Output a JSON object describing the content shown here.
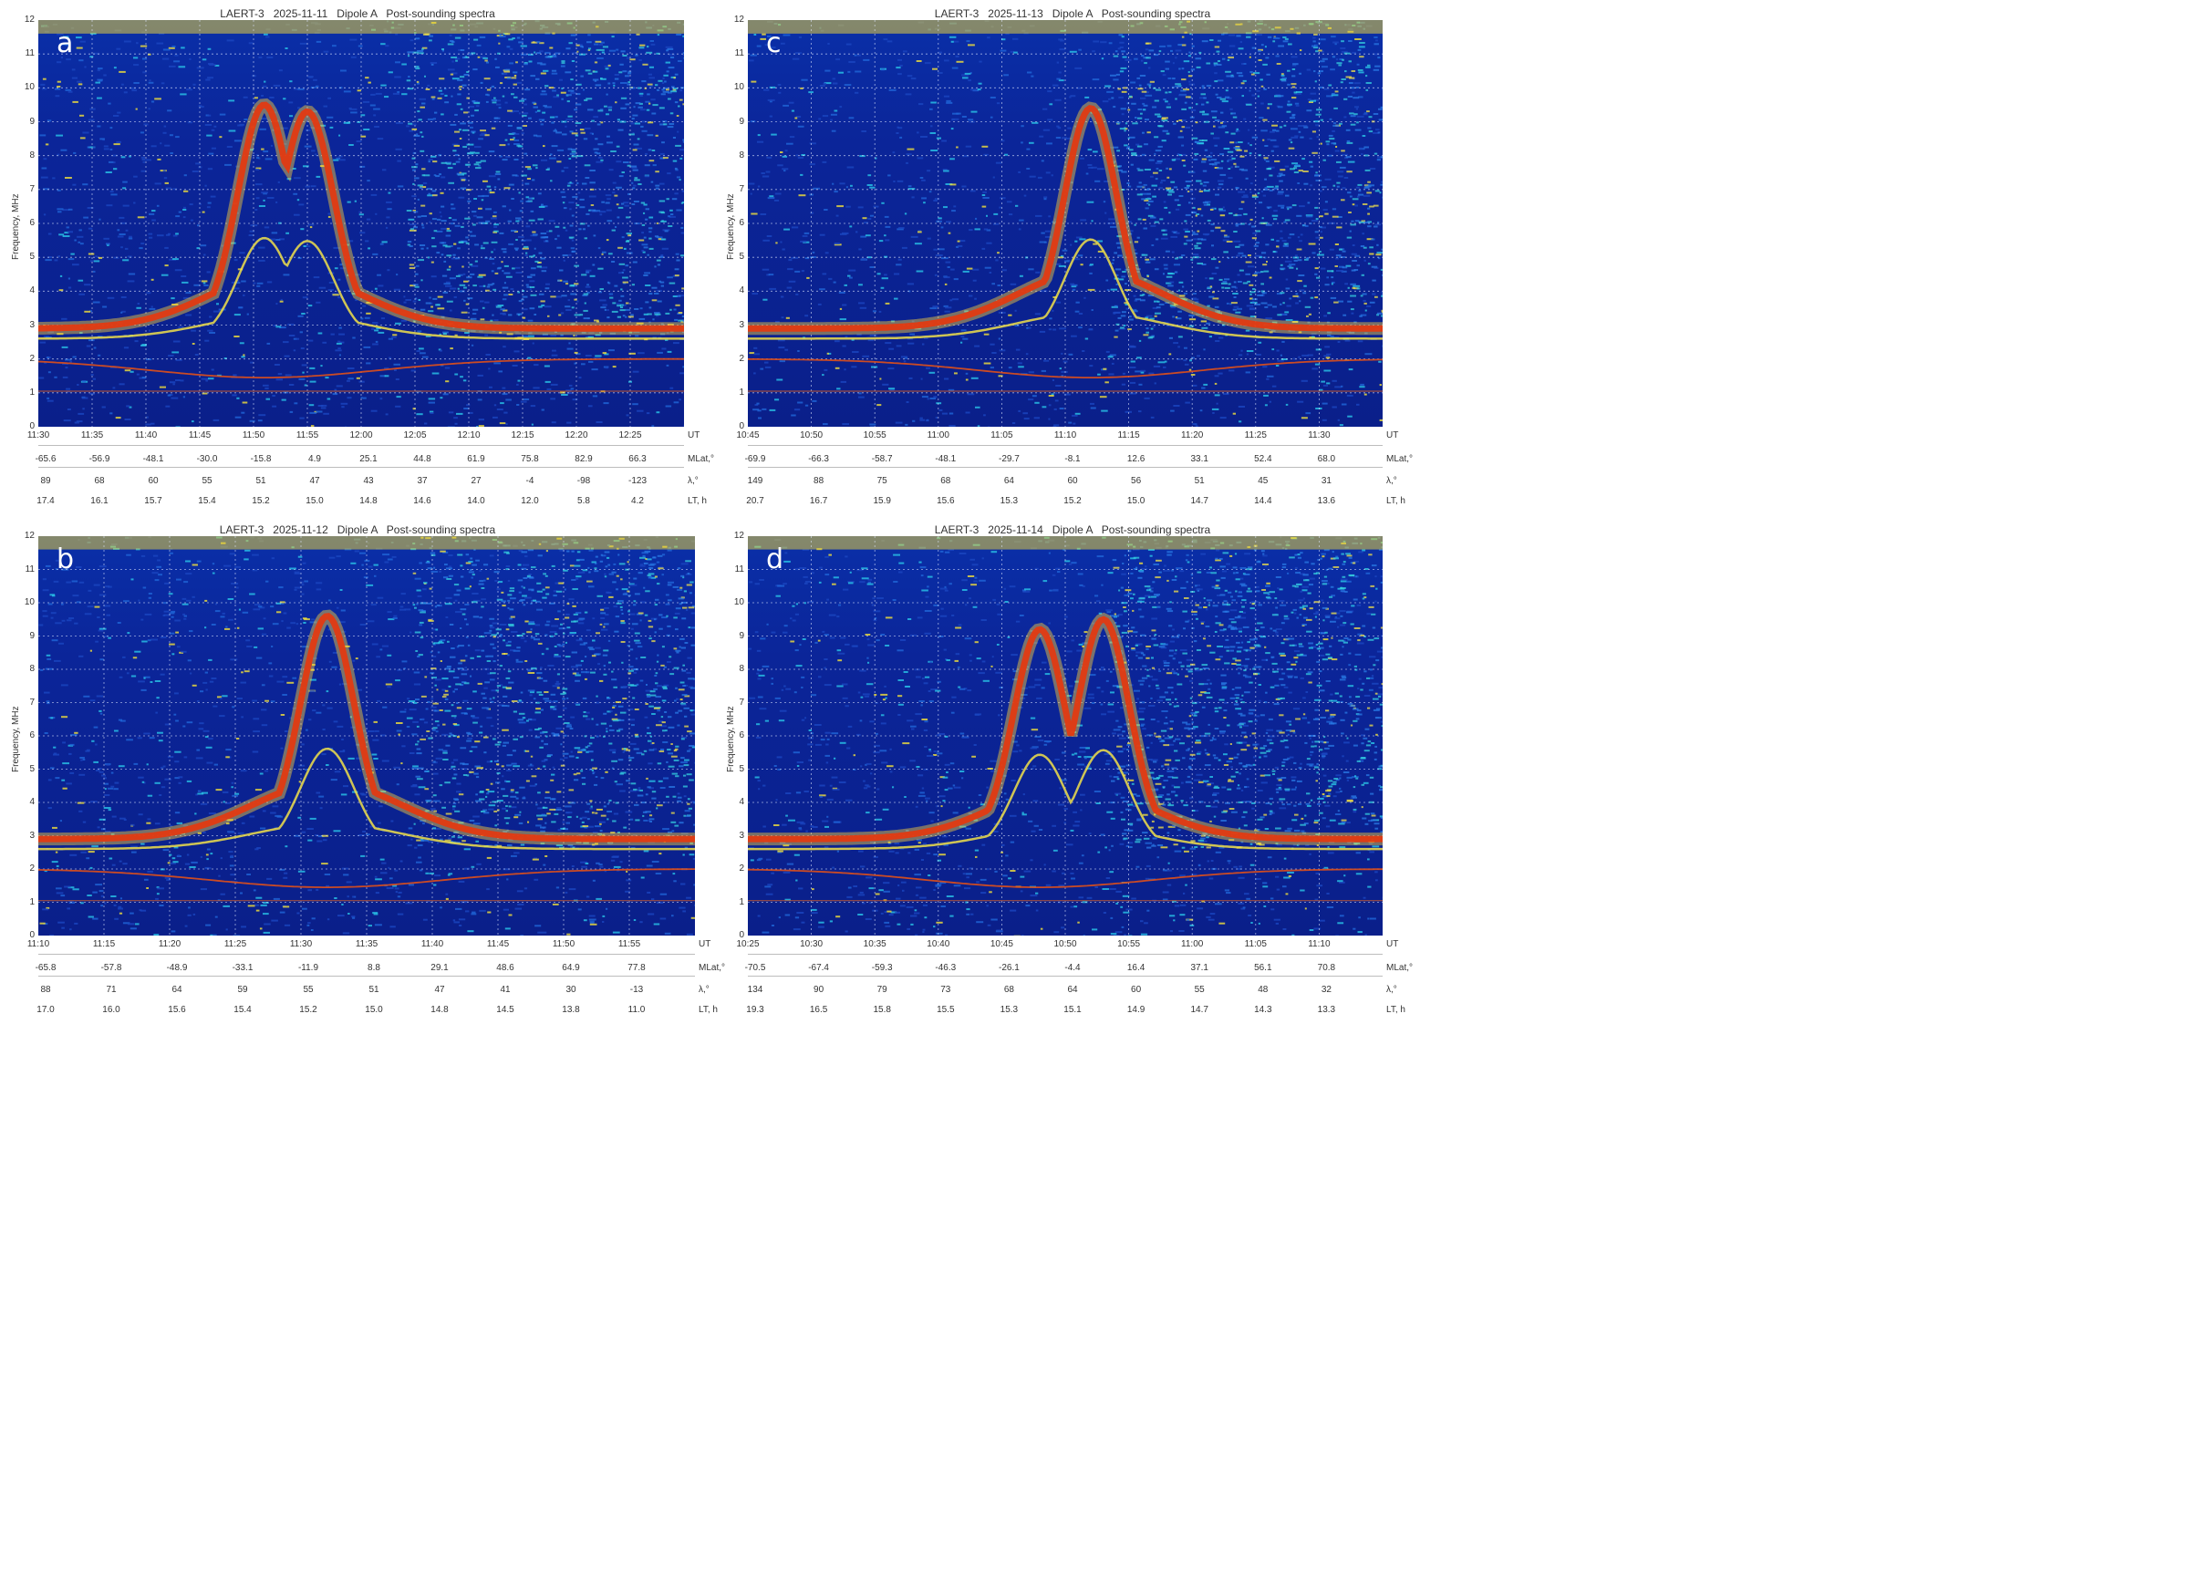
{
  "chart_data": [
    {
      "type": "heatmap",
      "panel_letter": "a",
      "title": "LAERT-3   2025-11-11   Dipole A   Post-sounding spectra",
      "ylabel": "Frequency, MHz",
      "ylim": [
        0,
        12
      ],
      "yticks": [
        "0",
        "1",
        "2",
        "3",
        "4",
        "5",
        "6",
        "7",
        "8",
        "9",
        "10",
        "11",
        "12"
      ],
      "rows": [
        {
          "unit": "UT",
          "values": [
            "11:30",
            "11:35",
            "11:40",
            "11:45",
            "11:50",
            "11:55",
            "12:00",
            "12:05",
            "12:10",
            "12:15",
            "12:20",
            "12:25"
          ]
        },
        {
          "unit": "MLat,°",
          "values": [
            "-65.6",
            "-56.9",
            "-48.1",
            "-30.0",
            "-15.8",
            "4.9",
            "25.1",
            "44.8",
            "61.9",
            "75.8",
            "82.9",
            "66.3"
          ]
        },
        {
          "unit": "",
          "values": [
            "89",
            "68",
            "60",
            "55",
            "51",
            "47",
            "43",
            "37",
            "27",
            "-4",
            "-98",
            "-123"
          ]
        },
        {
          "unit": "LT, h",
          "values": [
            "17.4",
            "16.1",
            "15.7",
            "15.4",
            "15.2",
            "15.0",
            "14.8",
            "14.6",
            "14.0",
            "12.0",
            "5.8",
            "4.2"
          ]
        }
      ],
      "lambda_unit": "λ,°",
      "trace_double_peak": true,
      "peaks_mhz": [
        9.5,
        9.3
      ],
      "peak_ut": [
        "11:51",
        "11:55"
      ]
    },
    {
      "type": "heatmap",
      "panel_letter": "c",
      "title": "LAERT-3   2025-11-13   Dipole A   Post-sounding spectra",
      "ylabel": "Frequency, MHz",
      "ylim": [
        0,
        12
      ],
      "yticks": [
        "0",
        "1",
        "2",
        "3",
        "4",
        "5",
        "6",
        "7",
        "8",
        "9",
        "10",
        "11",
        "12"
      ],
      "rows": [
        {
          "unit": "UT",
          "values": [
            "10:45",
            "10:50",
            "10:55",
            "11:00",
            "11:05",
            "11:10",
            "11:15",
            "11:20",
            "11:25",
            "11:30"
          ]
        },
        {
          "unit": "MLat,°",
          "values": [
            "-69.9",
            "-66.3",
            "-58.7",
            "-48.1",
            "-29.7",
            "-8.1",
            "12.6",
            "33.1",
            "52.4",
            "68.0"
          ]
        },
        {
          "unit": "",
          "values": [
            "149",
            "88",
            "75",
            "68",
            "64",
            "60",
            "56",
            "51",
            "45",
            "31"
          ]
        },
        {
          "unit": "LT, h",
          "values": [
            "20.7",
            "16.7",
            "15.9",
            "15.6",
            "15.3",
            "15.2",
            "15.0",
            "14.7",
            "14.4",
            "13.6"
          ]
        }
      ],
      "lambda_unit": "λ,°",
      "trace_double_peak": false,
      "peaks_mhz": [
        9.4
      ],
      "peak_ut": [
        "11:12"
      ]
    },
    {
      "type": "heatmap",
      "panel_letter": "b",
      "title": "LAERT-3   2025-11-12   Dipole A   Post-sounding spectra",
      "ylabel": "Frequency, MHz",
      "ylim": [
        0,
        12
      ],
      "yticks": [
        "0",
        "1",
        "2",
        "3",
        "4",
        "5",
        "6",
        "7",
        "8",
        "9",
        "10",
        "11",
        "12"
      ],
      "rows": [
        {
          "unit": "UT",
          "values": [
            "11:10",
            "11:15",
            "11:20",
            "11:25",
            "11:30",
            "11:35",
            "11:40",
            "11:45",
            "11:50",
            "11:55"
          ]
        },
        {
          "unit": "MLat,°",
          "values": [
            "-65.8",
            "-57.8",
            "-48.9",
            "-33.1",
            "-11.9",
            "8.8",
            "29.1",
            "48.6",
            "64.9",
            "77.8"
          ]
        },
        {
          "unit": "",
          "values": [
            "88",
            "71",
            "64",
            "59",
            "55",
            "51",
            "47",
            "41",
            "30",
            "-13"
          ]
        },
        {
          "unit": "LT, h",
          "values": [
            "17.0",
            "16.0",
            "15.6",
            "15.4",
            "15.2",
            "15.0",
            "14.8",
            "14.5",
            "13.8",
            "11.0"
          ]
        }
      ],
      "lambda_unit": "λ,°",
      "trace_double_peak": false,
      "peaks_mhz": [
        9.6
      ],
      "peak_ut": [
        "11:32"
      ]
    },
    {
      "type": "heatmap",
      "panel_letter": "d",
      "title": "LAERT-3   2025-11-14   Dipole A   Post-sounding spectra",
      "ylabel": "Frequency, MHz",
      "ylim": [
        0,
        12
      ],
      "yticks": [
        "0",
        "1",
        "2",
        "3",
        "4",
        "5",
        "6",
        "7",
        "8",
        "9",
        "10",
        "11",
        "12"
      ],
      "rows": [
        {
          "unit": "UT",
          "values": [
            "10:25",
            "10:30",
            "10:35",
            "10:40",
            "10:45",
            "10:50",
            "10:55",
            "11:00",
            "11:05",
            "11:10"
          ]
        },
        {
          "unit": "MLat,°",
          "values": [
            "-70.5",
            "-67.4",
            "-59.3",
            "-46.3",
            "-26.1",
            "-4.4",
            "16.4",
            "37.1",
            "56.1",
            "70.8"
          ]
        },
        {
          "unit": "",
          "values": [
            "134",
            "90",
            "79",
            "73",
            "68",
            "64",
            "60",
            "55",
            "48",
            "32"
          ]
        },
        {
          "unit": "LT, h",
          "values": [
            "19.3",
            "16.5",
            "15.8",
            "15.5",
            "15.3",
            "15.1",
            "14.9",
            "14.7",
            "14.3",
            "13.3"
          ]
        }
      ],
      "lambda_unit": "λ,°",
      "trace_double_peak": true,
      "peaks_mhz": [
        9.2,
        9.5
      ],
      "peak_ut": [
        "10:48",
        "10:53"
      ]
    }
  ]
}
